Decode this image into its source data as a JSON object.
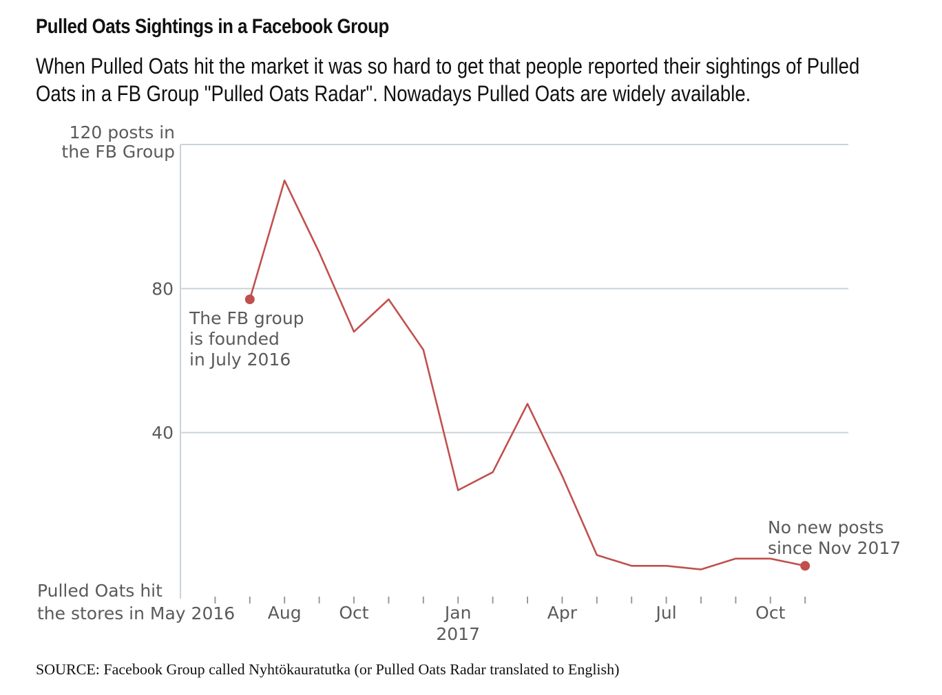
{
  "header": {
    "title": "Pulled Oats Sightings in a Facebook Group",
    "subtitle_lines": [
      "When Pulled Oats hit the market it was so hard to get that people reported their sightings of Pulled",
      "Oats in a FB Group \"Pulled Oats Radar\". Nowadays Pulled Oats are widely available."
    ]
  },
  "source": "SOURCE: Facebook Group called Nyhtökauratutka (or Pulled Oats Radar translated to English)",
  "colors": {
    "line": "#c0504d",
    "grid": "#c9d3d9",
    "axis_text": "#5a5a5a"
  },
  "chart_data": {
    "type": "line",
    "ylabel_lines": [
      "120 posts in",
      "the FB Group"
    ],
    "ylim": [
      0,
      120
    ],
    "y_ticks": [
      40,
      80
    ],
    "gridlines": [
      40,
      80,
      120
    ],
    "grid": true,
    "x_start_label_lines": [
      "Pulled Oats hit",
      "the stores in May 2016"
    ],
    "x_tick_labels": [
      {
        "month": "2016-08",
        "label": "Aug"
      },
      {
        "month": "2016-10",
        "label": "Oct"
      },
      {
        "month": "2017-01",
        "label": "Jan",
        "sub": "2017"
      },
      {
        "month": "2017-04",
        "label": "Apr"
      },
      {
        "month": "2017-07",
        "label": "Jul"
      },
      {
        "month": "2017-10",
        "label": "Oct"
      }
    ],
    "x": [
      "2016-07",
      "2016-08",
      "2016-09",
      "2016-10",
      "2016-11",
      "2016-12",
      "2017-01",
      "2017-02",
      "2017-03",
      "2017-04",
      "2017-05",
      "2017-06",
      "2017-07",
      "2017-08",
      "2017-09",
      "2017-10",
      "2017-11"
    ],
    "values": [
      77,
      110,
      90,
      68,
      77,
      63,
      24,
      29,
      48,
      28,
      6,
      3,
      3,
      2,
      5,
      5,
      3
    ],
    "annotations": [
      {
        "month": "2016-07",
        "lines": [
          "The FB group",
          "is founded",
          "in July 2016"
        ]
      },
      {
        "month": "2017-11",
        "lines": [
          "No new posts",
          "since Nov 2017"
        ]
      }
    ]
  }
}
